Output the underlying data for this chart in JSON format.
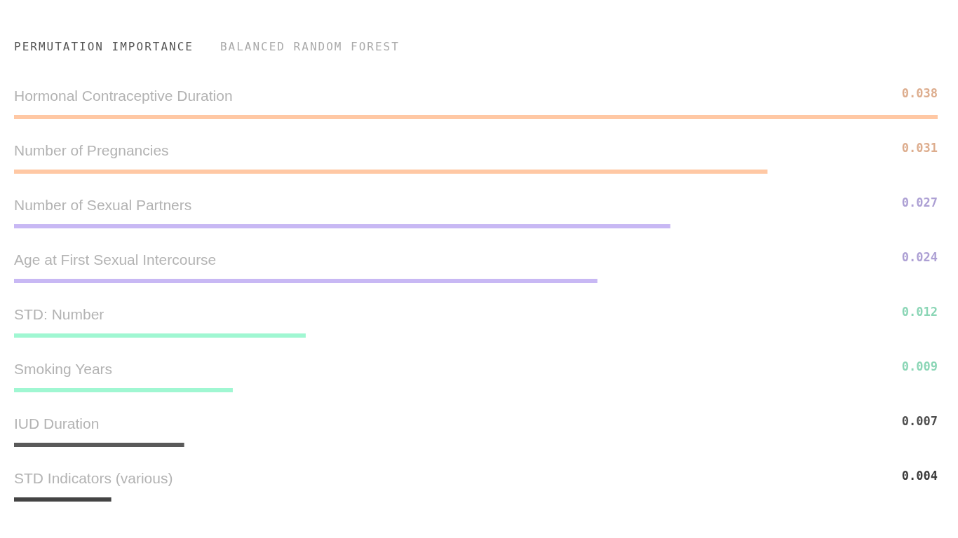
{
  "chart_data": {
    "type": "bar",
    "orientation": "horizontal",
    "title": "PERMUTATION IMPORTANCE",
    "subtitle": "BALANCED RANDOM FOREST",
    "categories": [
      "Hormonal Contraceptive Duration",
      "Number of Pregnancies",
      "Number of Sexual Partners",
      "Age at First Sexual Intercourse",
      "STD: Number",
      "Smoking Years",
      "IUD Duration",
      "STD Indicators (various)"
    ],
    "values": [
      0.038,
      0.031,
      0.027,
      0.024,
      0.012,
      0.009,
      0.007,
      0.004
    ],
    "colors": [
      "#ffc8a4",
      "#ffc8a4",
      "#c8b8f4",
      "#c8b8f4",
      "#a0f7d2",
      "#a0f7d2",
      "#5a5a5a",
      "#444444"
    ],
    "data_labels": true
  }
}
